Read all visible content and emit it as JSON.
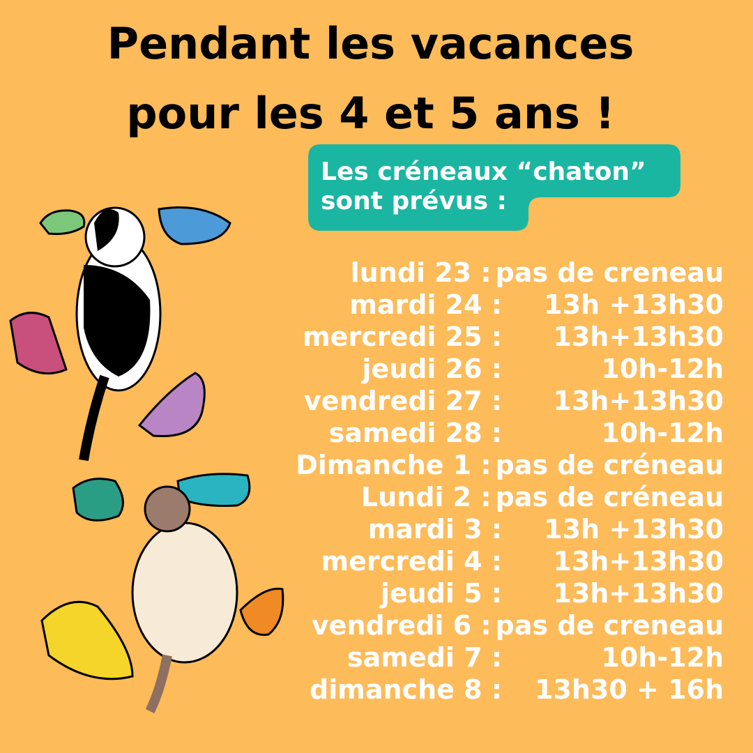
{
  "title": {
    "line1": "Pendant les vacances",
    "line2": "pour les 4 et 5 ans !"
  },
  "bubble": {
    "line1": "Les créneaux “chaton”",
    "line2": "sont prévus :"
  },
  "colors": {
    "background": "#fdbb5a",
    "bubble": "#1ab6a2",
    "text": "#ffffff"
  },
  "illustrations": [
    "black-white-cat-climbing",
    "siamese-cat-climbing",
    "climbing-holds"
  ],
  "schedule": [
    {
      "day": "lundi 23 :",
      "time": "pas de creneau"
    },
    {
      "day": "mardi 24 :",
      "time": "13h +13h30"
    },
    {
      "day": "mercredi 25 :",
      "time": "13h+13h30"
    },
    {
      "day": "jeudi 26 :",
      "time": "10h-12h"
    },
    {
      "day": "vendredi 27 :",
      "time": "13h+13h30"
    },
    {
      "day": "samedi 28 :",
      "time": "10h-12h"
    },
    {
      "day": "Dimanche 1 :",
      "time": "pas de créneau"
    },
    {
      "day": "Lundi 2 :",
      "time": "pas de créneau"
    },
    {
      "day": "mardi 3 :",
      "time": "13h +13h30"
    },
    {
      "day": "mercredi 4 :",
      "time": "13h+13h30"
    },
    {
      "day": "jeudi 5 :",
      "time": "13h+13h30"
    },
    {
      "day": "vendredi 6 :",
      "time": "pas de creneau"
    },
    {
      "day": "samedi 7 :",
      "time": "10h-12h"
    },
    {
      "day": "dimanche 8 :",
      "time": "13h30 + 16h"
    }
  ]
}
